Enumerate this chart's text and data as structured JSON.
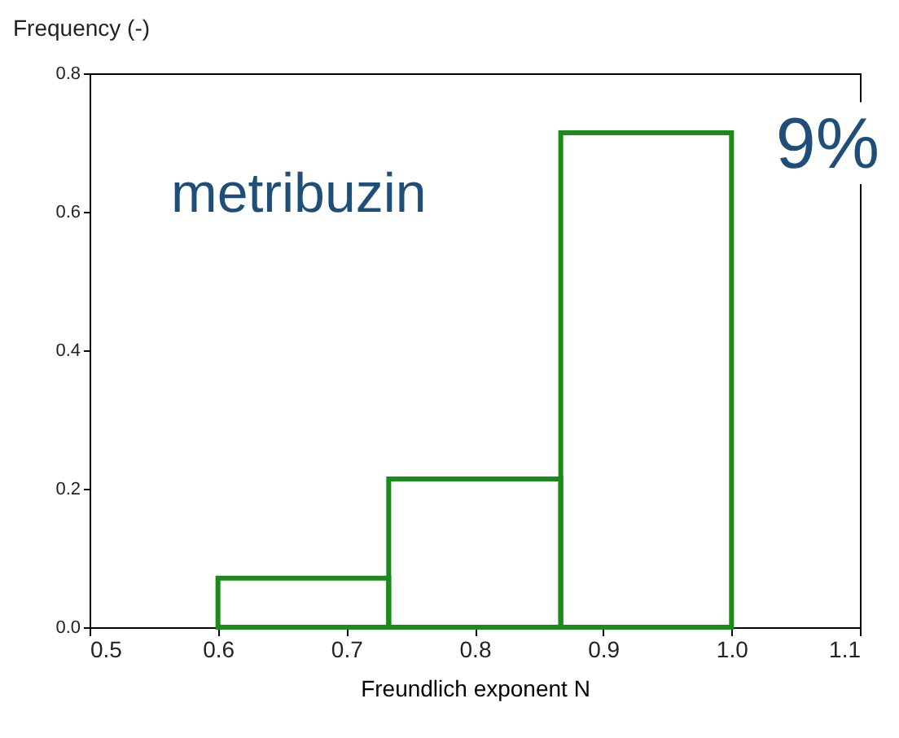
{
  "chart_data": {
    "type": "histogram",
    "xlabel": "Freundlich exponent N",
    "ylabel": "Frequency (-)",
    "annotations": [
      "metribuzin",
      "9%"
    ],
    "bins": [
      0.6,
      0.733,
      0.867,
      1.0
    ],
    "values": [
      0.071,
      0.214,
      0.714
    ],
    "color": "#1a8a1a",
    "xlim": [
      0.5,
      1.1
    ],
    "xticks": [
      0.5,
      0.6,
      0.7,
      0.8,
      0.9,
      {
        "value": 1,
        "label": "1.0"
      },
      1.1
    ],
    "ylim": [
      0,
      0.8
    ],
    "yticks": [
      {
        "value": 0,
        "label": "0.0"
      },
      0.2,
      0.4,
      0.6,
      0.8
    ],
    "grid": false
  }
}
